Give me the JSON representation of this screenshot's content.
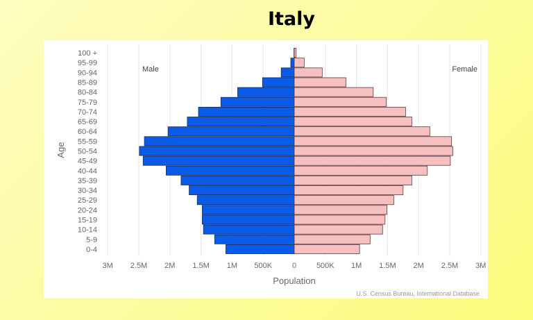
{
  "title": "Italy",
  "chart_data": {
    "type": "bar",
    "orientation": "horizontal-pyramid",
    "title": "",
    "xlabel": "Population",
    "ylabel": "Age",
    "categories": [
      "100 +",
      "95-99",
      "90-94",
      "85-89",
      "80-84",
      "75-79",
      "70-74",
      "65-69",
      "60-64",
      "55-59",
      "50-54",
      "45-49",
      "40-44",
      "35-39",
      "30-34",
      "25-29",
      "20-24",
      "15-19",
      "10-14",
      "5-9",
      "0-4"
    ],
    "series": [
      {
        "name": "Male",
        "color": "#0a5ce8",
        "values": [
          5000,
          56000,
          210000,
          510000,
          910000,
          1180000,
          1540000,
          1720000,
          2030000,
          2410000,
          2490000,
          2430000,
          2060000,
          1820000,
          1690000,
          1560000,
          1480000,
          1480000,
          1460000,
          1280000,
          1100000
        ]
      },
      {
        "name": "Female",
        "color": "#f7c0c0",
        "values": [
          30000,
          160000,
          450000,
          830000,
          1270000,
          1480000,
          1790000,
          1890000,
          2180000,
          2530000,
          2550000,
          2510000,
          2140000,
          1890000,
          1750000,
          1600000,
          1490000,
          1460000,
          1420000,
          1220000,
          1050000
        ]
      }
    ],
    "xlim": [
      -3000000,
      3000000
    ],
    "x_tick_labels": [
      "3M",
      "2.5M",
      "2M",
      "1.5M",
      "1M",
      "500K",
      "0",
      "500K",
      "1M",
      "1.5M",
      "2M",
      "2.5M",
      "3M"
    ],
    "x_tick_values": [
      -3000000,
      -2500000,
      -2000000,
      -1500000,
      -1000000,
      -500000,
      0,
      500000,
      1000000,
      1500000,
      2000000,
      2500000,
      3000000
    ],
    "grid": true,
    "source": "U.S. Census Bureau, International Database"
  }
}
